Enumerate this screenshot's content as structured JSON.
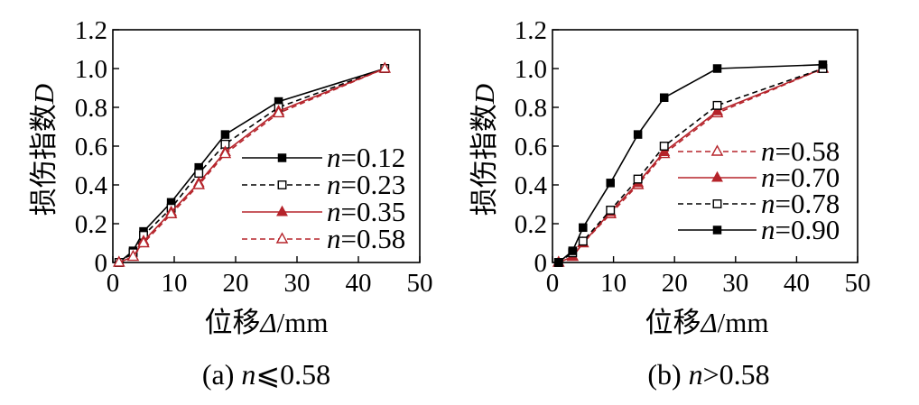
{
  "chart_data": [
    {
      "type": "line",
      "caption": "(a) n⩽0.58",
      "xlabel": "位移Δ/mm",
      "ylabel": "损伤指数D",
      "xlim": [
        0,
        50
      ],
      "ylim": [
        0,
        1.2
      ],
      "xticks": [
        0,
        10,
        20,
        30,
        40,
        50
      ],
      "xtick_labels": [
        "0",
        "10",
        "20",
        "30",
        "40",
        "50"
      ],
      "yticks": [
        0,
        0.2,
        0.4,
        0.6,
        0.8,
        1.0,
        1.2
      ],
      "ytick_labels": [
        "0",
        "0.2",
        "0.4",
        "0.6",
        "0.8",
        "1.0",
        "1.2"
      ],
      "grid": false,
      "legend_position": "center-right",
      "series": [
        {
          "name": "n=0.12",
          "color": "#000000",
          "line_style": "solid",
          "marker": "filled-square",
          "x": [
            1,
            3.3,
            5,
            9.5,
            14,
            18.3,
            27,
            44.3
          ],
          "y": [
            0,
            0.06,
            0.16,
            0.31,
            0.49,
            0.66,
            0.83,
            1.0
          ]
        },
        {
          "name": "n=0.23",
          "color": "#000000",
          "line_style": "dashed",
          "marker": "open-square",
          "x": [
            1,
            3.3,
            5,
            9.5,
            14,
            18.3,
            27,
            44.3
          ],
          "y": [
            0,
            0.05,
            0.14,
            0.28,
            0.46,
            0.61,
            0.8,
            1.0
          ]
        },
        {
          "name": "n=0.35",
          "color": "#b5232a",
          "line_style": "solid",
          "marker": "filled-triangle",
          "x": [
            1,
            3.3,
            5,
            9.5,
            14,
            18.3,
            27,
            44.3
          ],
          "y": [
            0,
            0.03,
            0.11,
            0.26,
            0.41,
            0.57,
            0.78,
            1.0
          ]
        },
        {
          "name": "n=0.58",
          "color": "#b5232a",
          "line_style": "dashed",
          "marker": "open-triangle",
          "x": [
            1,
            3.3,
            5,
            9.5,
            14,
            18.3,
            27,
            44.3
          ],
          "y": [
            0,
            0.03,
            0.1,
            0.25,
            0.4,
            0.56,
            0.77,
            1.0
          ]
        }
      ]
    },
    {
      "type": "line",
      "caption": "(b) n>0.58",
      "xlabel": "位移Δ/mm",
      "ylabel": "损伤指数D",
      "xlim": [
        0,
        50
      ],
      "ylim": [
        0,
        1.2
      ],
      "xticks": [
        0,
        10,
        20,
        30,
        40,
        50
      ],
      "xtick_labels": [
        "0",
        "10",
        "20",
        "30",
        "40",
        "50"
      ],
      "yticks": [
        0,
        0.2,
        0.4,
        0.6,
        0.8,
        1.0,
        1.2
      ],
      "ytick_labels": [
        "0",
        "0.2",
        "0.4",
        "0.6",
        "0.8",
        "1.0",
        "1.2"
      ],
      "grid": false,
      "legend_position": "lower-right",
      "series": [
        {
          "name": "n=0.58",
          "color": "#b5232a",
          "line_style": "dashed",
          "marker": "open-triangle",
          "x": [
            1,
            3.3,
            5,
            9.5,
            14,
            18.3,
            27,
            44.3
          ],
          "y": [
            0,
            0.03,
            0.1,
            0.25,
            0.4,
            0.56,
            0.77,
            1.0
          ]
        },
        {
          "name": "n=0.70",
          "color": "#b5232a",
          "line_style": "solid",
          "marker": "filled-triangle",
          "x": [
            1,
            3.3,
            5,
            9.5,
            14,
            18.3,
            27,
            44.3
          ],
          "y": [
            0,
            0.03,
            0.1,
            0.26,
            0.41,
            0.57,
            0.78,
            1.0
          ]
        },
        {
          "name": "n=0.78",
          "color": "#000000",
          "line_style": "dashed",
          "marker": "open-square",
          "x": [
            1,
            3.3,
            5,
            9.5,
            14,
            18.3,
            27,
            44.3
          ],
          "y": [
            0,
            0.05,
            0.11,
            0.27,
            0.43,
            0.6,
            0.81,
            1.0
          ]
        },
        {
          "name": "n=0.90",
          "color": "#000000",
          "line_style": "solid",
          "marker": "filled-square",
          "x": [
            1,
            3.3,
            5,
            9.5,
            14,
            18.3,
            27,
            44.3
          ],
          "y": [
            0,
            0.06,
            0.18,
            0.41,
            0.66,
            0.85,
            1.0,
            1.02
          ]
        }
      ]
    }
  ]
}
